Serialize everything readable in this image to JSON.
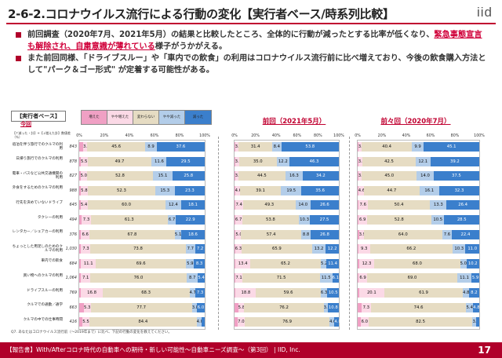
{
  "header": {
    "title": "2-6-2.コロナウイルス流行による行動の変化【実行者ベース/時系列比較】",
    "logo": "iid"
  },
  "bullets": [
    {
      "parts": [
        {
          "text": "前回調査（2020年7月、2021年5月）の結果と比較したところ、全体的に行動が減ったとする比率が低くなり、",
          "style": ""
        },
        {
          "text": "緊急事態宣言も解除され、自粛意識が薄れている",
          "style": "red u"
        },
        {
          "text": "様子がうかがえる。",
          "style": ""
        }
      ]
    },
    {
      "parts": [
        {
          "text": "また前回同様、「ドライブスルー」や「車内での飲食」の利用はコロナウイルス流行前に比べ増えており、今後の飲食購入方法として\"パーク＆ゴー形式\" が定着する可能性がある。",
          "style": ""
        }
      ]
    }
  ],
  "base_box": "【実行者ベース】",
  "base_sub": "今回",
  "tiny_note": "【↑減った・計】+【↓増えた計】数値差（％）",
  "legend": [
    "増えた",
    "やや増えた",
    "変わらない",
    "やや減った",
    "減った"
  ],
  "panels": [
    {
      "label": "今回"
    },
    {
      "label": "前回（2021年5月）"
    },
    {
      "label": "前々回（2020年7月）"
    }
  ],
  "axis_ticks": [
    "0%",
    "20%",
    "40%",
    "60%",
    "80%",
    "100%"
  ],
  "colors": {
    "inc": "#f0a0c4",
    "sinc": "#fbd9e6",
    "same": "#e6dcc3",
    "sdec": "#b3cde9",
    "dec": "#3b7fcc",
    "accent": "#b0002a"
  },
  "rows": [
    {
      "label": "宿泊を伴う旅行でのクルマの利用",
      "n": "843"
    },
    {
      "label": "日帰り旅行でのクルマの利用",
      "n": "878"
    },
    {
      "label": "電車・バスなど公共交通機関の利用",
      "n": "827"
    },
    {
      "label": "外食をするためのクルマの利用",
      "n": "988"
    },
    {
      "label": "行先を決めていないドライブ",
      "n": "645"
    },
    {
      "label": "タクシーの利用",
      "n": "494"
    },
    {
      "label": "レンタカー／シェアカーの利用",
      "n": "376"
    },
    {
      "label": "ちょっとした用足しのためのクルマの利用",
      "n": "1,030"
    },
    {
      "label": "車内での飲食",
      "n": "684"
    },
    {
      "label": "買い物へのクルマの利用",
      "n": "1,064"
    },
    {
      "label": "ドライブスルーの利用",
      "n": "769"
    },
    {
      "label": "クルマでの通勤／通学",
      "n": "663"
    },
    {
      "label": "クルマの中での仕事時間",
      "n": "416"
    }
  ],
  "bars": {
    "current": [
      [
        3.1,
        3.1,
        45.6,
        8.9,
        37.6
      ],
      [
        1.0,
        5.5,
        49.7,
        11.6,
        29.5
      ],
      [
        1.0,
        5.0,
        52.8,
        15.1,
        25.8
      ],
      [
        1.0,
        5.8,
        52.3,
        15.3,
        23.3
      ],
      [
        1.0,
        5.4,
        60.0,
        12.4,
        18.1
      ],
      [
        2.0,
        7.3,
        61.3,
        6.7,
        22.9
      ],
      [
        1.5,
        6.6,
        67.8,
        5.1,
        18.6
      ],
      [
        1.5,
        7.3,
        73.8,
        7.7,
        7.2
      ],
      [
        1.5,
        11.1,
        69.6,
        5.9,
        8.3
      ],
      [
        1.5,
        7.1,
        76.0,
        8.7,
        5.4
      ],
      [
        1.5,
        16.8,
        68.3,
        4.7,
        7.3
      ],
      [
        3.5,
        5.3,
        77.7,
        3.8,
        6.0
      ],
      [
        2.5,
        5.5,
        84.4,
        4.0,
        2.4
      ]
    ],
    "previous": [
      [
        0.5,
        3.3,
        31.4,
        8.4,
        53.8
      ],
      [
        0.5,
        3.9,
        35.0,
        12.2,
        46.3
      ],
      [
        0.5,
        3.1,
        44.5,
        16.3,
        34.2
      ],
      [
        0.5,
        4.6,
        39.1,
        19.5,
        35.6
      ],
      [
        0.5,
        7.4,
        49.3,
        14.0,
        26.6
      ],
      [
        0.5,
        6.7,
        53.8,
        10.3,
        27.5
      ],
      [
        1.0,
        5.0,
        57.4,
        8.8,
        26.8
      ],
      [
        0.5,
        6.3,
        65.9,
        13.2,
        12.2
      ],
      [
        1.0,
        13.4,
        65.2,
        5.2,
        11.4
      ],
      [
        0.5,
        7.1,
        71.5,
        11.5,
        6.1
      ],
      [
        1.0,
        18.8,
        59.6,
        6.3,
        10.5
      ],
      [
        3.5,
        5.8,
        76.2,
        3.8,
        10.8
      ],
      [
        2.5,
        7.0,
        76.9,
        4.6,
        4.0
      ]
    ],
    "before": [
      [
        0.5,
        3.0,
        40.4,
        9.9,
        45.1
      ],
      [
        0.5,
        3.5,
        42.5,
        12.1,
        39.2
      ],
      [
        0.5,
        3.0,
        45.0,
        14.0,
        37.5
      ],
      [
        0.5,
        4.6,
        44.7,
        16.1,
        32.3
      ],
      [
        0.5,
        7.6,
        50.4,
        13.3,
        26.4
      ],
      [
        0.5,
        6.9,
        52.8,
        10.5,
        28.5
      ],
      [
        1.0,
        3.9,
        64.0,
        7.6,
        22.4
      ],
      [
        0.5,
        9.3,
        66.2,
        10.3,
        11.0
      ],
      [
        1.0,
        12.3,
        68.0,
        5.0,
        10.2
      ],
      [
        0.5,
        6.9,
        69.0,
        11.1,
        5.9
      ],
      [
        1.0,
        20.1,
        61.9,
        4.8,
        8.2
      ],
      [
        3.0,
        7.3,
        74.6,
        5.4,
        4.8
      ],
      [
        2.5,
        6.0,
        82.5,
        3.0,
        2.3
      ]
    ]
  },
  "note": "Q7. あなたはコロナウイルス流行前（〜2019年まで）に比べ、下記の行動の変化を教えてください。",
  "footer": {
    "text": "【報告書】With/Afterコロナ時代の自動車への期待・新しい可能性〜自動車ニーズ調査〜（第3回） | IID, Inc.",
    "page": "17"
  }
}
